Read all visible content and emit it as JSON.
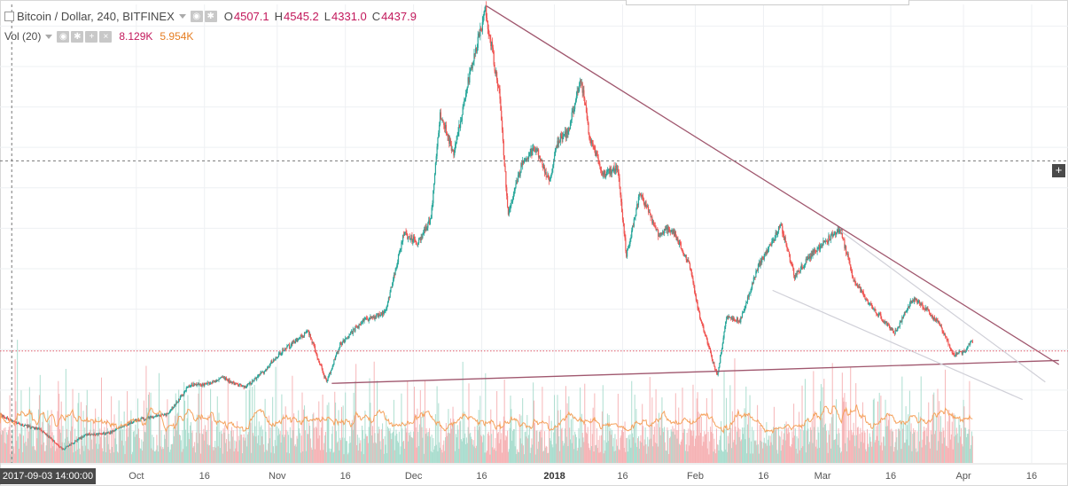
{
  "legend": {
    "symbol": "Bitcoin / Dollar, 240, BITFINEX",
    "open_label": "O",
    "open": "4507.1",
    "high_label": "H",
    "high": "4545.2",
    "low_label": "L",
    "low": "4331.0",
    "close_label": "C",
    "close": "4437.9"
  },
  "volume": {
    "title": "Vol (20)",
    "value": "8.129K",
    "ma": "5.954K"
  },
  "crosshair_date": "2017-09-03 14:00:00",
  "colors": {
    "up": "#26a69a",
    "down": "#ef5350",
    "trendline": "#a0576e",
    "price_line": "#e05a6a",
    "volume_ma": "#f5a25d",
    "channel": "#d0d0d8"
  },
  "chart_data": {
    "type": "candlestick",
    "symbol": "Bitcoin / Dollar, 240, BITFINEX",
    "timeframe": "240",
    "x_tick_labels": [
      "Oct",
      "16",
      "Nov",
      "16",
      "Dec",
      "16",
      "2018",
      "16",
      "Feb",
      "16",
      "Mar",
      "16",
      "Apr",
      "16"
    ],
    "x_tick_dates": [
      "2017-10-01",
      "2017-10-16",
      "2017-11-01",
      "2017-11-16",
      "2017-12-01",
      "2017-12-16",
      "2018-01-01",
      "2018-01-16",
      "2018-02-01",
      "2018-02-16",
      "2018-03-01",
      "2018-03-16",
      "2018-04-01",
      "2018-04-16"
    ],
    "x_range": [
      "2017-09-01",
      "2018-04-24"
    ],
    "y_range": [
      2800,
      19800
    ],
    "price_path": [
      [
        "2017-09-01",
        4600
      ],
      [
        "2017-09-05",
        4250
      ],
      [
        "2017-09-10",
        4050
      ],
      [
        "2017-09-15",
        3300
      ],
      [
        "2017-09-20",
        3850
      ],
      [
        "2017-09-25",
        3900
      ],
      [
        "2017-10-01",
        4380
      ],
      [
        "2017-10-08",
        4600
      ],
      [
        "2017-10-13",
        5700
      ],
      [
        "2017-10-16",
        5700
      ],
      [
        "2017-10-20",
        5950
      ],
      [
        "2017-10-25",
        5600
      ],
      [
        "2017-10-29",
        6150
      ],
      [
        "2017-11-01",
        6750
      ],
      [
        "2017-11-05",
        7300
      ],
      [
        "2017-11-08",
        7700
      ],
      [
        "2017-11-12",
        5800
      ],
      [
        "2017-11-15",
        7200
      ],
      [
        "2017-11-20",
        8050
      ],
      [
        "2017-11-25",
        8400
      ],
      [
        "2017-11-29",
        11300
      ],
      [
        "2017-12-02",
        11000
      ],
      [
        "2017-12-05",
        11800
      ],
      [
        "2017-12-07",
        15800
      ],
      [
        "2017-12-10",
        14200
      ],
      [
        "2017-12-13",
        16800
      ],
      [
        "2017-12-17",
        19600
      ],
      [
        "2017-12-20",
        16500
      ],
      [
        "2017-12-22",
        12000
      ],
      [
        "2017-12-25",
        13900
      ],
      [
        "2017-12-28",
        14500
      ],
      [
        "2017-12-31",
        13200
      ],
      [
        "2018-01-02",
        14800
      ],
      [
        "2018-01-04",
        15000
      ],
      [
        "2018-01-07",
        17000
      ],
      [
        "2018-01-09",
        14800
      ],
      [
        "2018-01-12",
        13500
      ],
      [
        "2018-01-15",
        13800
      ],
      [
        "2018-01-17",
        10500
      ],
      [
        "2018-01-20",
        12800
      ],
      [
        "2018-01-24",
        11300
      ],
      [
        "2018-01-27",
        11500
      ],
      [
        "2018-01-31",
        10100
      ],
      [
        "2018-02-02",
        8300
      ],
      [
        "2018-02-06",
        6000
      ],
      [
        "2018-02-08",
        8200
      ],
      [
        "2018-02-11",
        8100
      ],
      [
        "2018-02-15",
        10100
      ],
      [
        "2018-02-20",
        11600
      ],
      [
        "2018-02-23",
        9700
      ],
      [
        "2018-02-27",
        10600
      ],
      [
        "2018-03-05",
        11500
      ],
      [
        "2018-03-08",
        9600
      ],
      [
        "2018-03-11",
        8800
      ],
      [
        "2018-03-14",
        8200
      ],
      [
        "2018-03-17",
        7600
      ],
      [
        "2018-03-21",
        8900
      ],
      [
        "2018-03-24",
        8500
      ],
      [
        "2018-03-27",
        7900
      ],
      [
        "2018-03-30",
        6800
      ],
      [
        "2018-04-01",
        6900
      ],
      [
        "2018-04-03",
        7300
      ]
    ],
    "last_price": 6950,
    "crosshair": {
      "date": "2017-09-03 14:00:00",
      "price": 14000
    },
    "trendlines": [
      {
        "role": "descending-resistance",
        "from": [
          "2017-12-17",
          19750
        ],
        "to": [
          "2018-04-22",
          6450
        ]
      },
      {
        "role": "ascending-support",
        "from": [
          "2017-11-13",
          5750
        ],
        "to": [
          "2018-04-22",
          6600
        ]
      },
      {
        "role": "channel-upper",
        "from": [
          "2018-03-05",
          11400
        ],
        "to": [
          "2018-04-19",
          5800
        ]
      },
      {
        "role": "channel-lower",
        "from": [
          "2018-02-18",
          9200
        ],
        "to": [
          "2018-04-14",
          5150
        ]
      }
    ],
    "volume": {
      "title": "Vol (20)",
      "value": "8.129K",
      "ma": "5.954K",
      "range": [
        0,
        18
      ]
    }
  }
}
